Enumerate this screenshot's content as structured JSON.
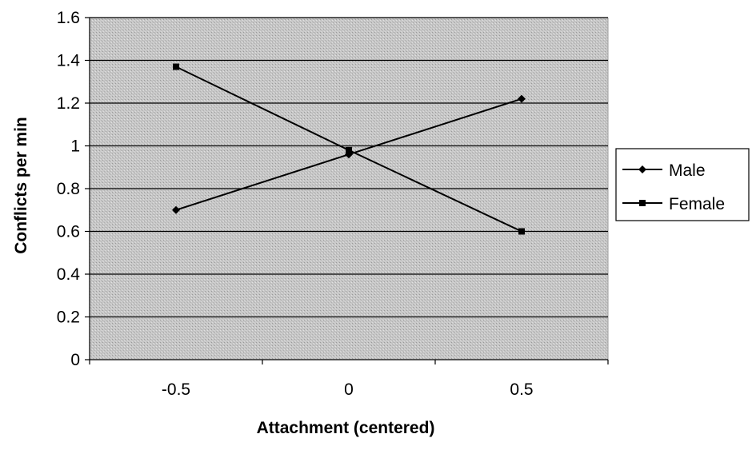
{
  "chart_data": {
    "type": "line",
    "title": "",
    "xlabel": "Attachment (centered)",
    "ylabel": "Conflicts per min",
    "x": [
      -0.5,
      0,
      0.5
    ],
    "x_tick_labels": [
      "-0.5",
      "0",
      "0.5"
    ],
    "y_tick_labels": [
      "0",
      "0.2",
      "0.4",
      "0.6",
      "0.8",
      "1",
      "1.2",
      "1.4",
      "1.6"
    ],
    "xlim": [
      -0.75,
      0.75
    ],
    "ylim": [
      0,
      1.6
    ],
    "y_step": 0.2,
    "grid": true,
    "legend_position": "right",
    "plot_background": "#c8c8c8",
    "series": [
      {
        "name": "Male",
        "marker": "diamond",
        "color": "#000000",
        "values": [
          0.7,
          0.96,
          1.22
        ]
      },
      {
        "name": "Female",
        "marker": "square",
        "color": "#000000",
        "values": [
          1.37,
          0.98,
          0.6
        ]
      }
    ]
  }
}
